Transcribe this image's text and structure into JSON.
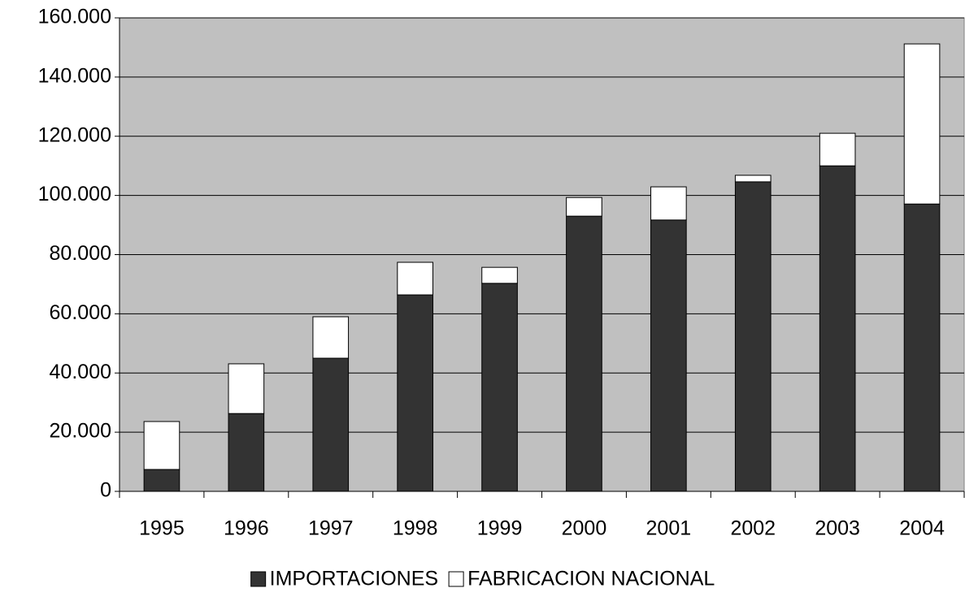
{
  "chart_data": {
    "type": "bar",
    "stacked": true,
    "categories": [
      "1995",
      "1996",
      "1997",
      "1998",
      "1999",
      "2000",
      "2001",
      "2002",
      "2003",
      "2004"
    ],
    "series": [
      {
        "name": "IMPORTACIONES",
        "color": "#333333",
        "values": [
          7400,
          26300,
          45000,
          66400,
          70300,
          93000,
          91700,
          104600,
          110000,
          97100
        ]
      },
      {
        "name": "FABRICACION NACIONAL",
        "color": "#ffffff",
        "values": [
          16200,
          16800,
          14000,
          11000,
          5400,
          6300,
          11200,
          2200,
          11000,
          54100
        ]
      }
    ],
    "ylim": [
      0,
      160000
    ],
    "yticks": [
      0,
      {
        "value": 20000,
        "label": "20.000"
      },
      {
        "value": 40000,
        "label": "40.000"
      },
      {
        "value": 60000,
        "label": "60.000"
      },
      {
        "value": 80000,
        "label": "80.000"
      },
      {
        "value": 100000,
        "label": "100.000"
      },
      {
        "value": 120000,
        "label": "120.000"
      },
      {
        "value": 140000,
        "label": "140.000"
      },
      {
        "value": 160000,
        "label": "160.000"
      }
    ],
    "grid": true,
    "plot_background": "#c0c0c0",
    "legend": "bottom"
  }
}
